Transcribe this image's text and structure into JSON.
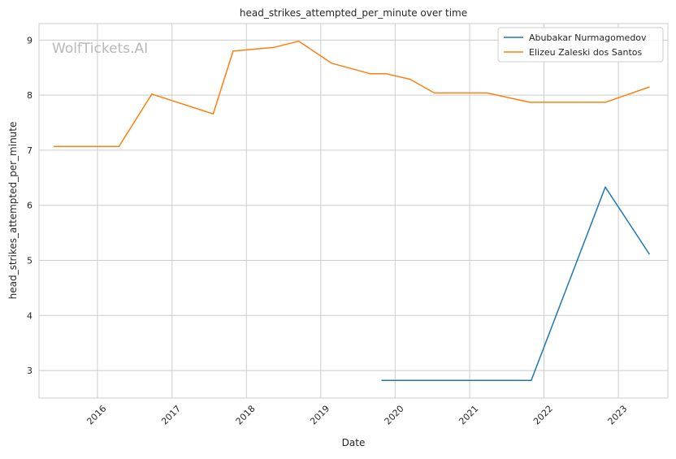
{
  "chart_data": {
    "type": "line",
    "title": "head_strikes_attempted_per_minute over time",
    "xlabel": "Date",
    "ylabel": "head_strikes_attempted_per_minute",
    "watermark": "WolfTickets.AI",
    "grid": true,
    "legend_position": "top-right",
    "x_ticks": [
      "2016",
      "2017",
      "2018",
      "2019",
      "2020",
      "2021",
      "2022",
      "2023"
    ],
    "y_ticks": [
      3,
      4,
      5,
      6,
      7,
      8,
      9
    ],
    "ylim": [
      2.5,
      9.3
    ],
    "xlim": [
      "2015-03-20",
      "2023-09-01"
    ],
    "series": [
      {
        "name": "Abubakar Nurmagomedov",
        "color": "#1f77b4",
        "points": [
          {
            "x": "2019-10-26",
            "y": 2.82
          },
          {
            "x": "2021-10-30",
            "y": 2.82
          },
          {
            "x": "2022-10-29",
            "y": 6.33
          },
          {
            "x": "2023-06-03",
            "y": 5.11
          }
        ]
      },
      {
        "name": "Elizeu Zaleski dos Santos",
        "color": "#ff7f0e",
        "points": [
          {
            "x": "2015-05-30",
            "y": 7.07
          },
          {
            "x": "2016-04-16",
            "y": 7.07
          },
          {
            "x": "2016-09-24",
            "y": 8.02
          },
          {
            "x": "2017-07-22",
            "y": 7.66
          },
          {
            "x": "2017-10-28",
            "y": 8.8
          },
          {
            "x": "2018-05-19",
            "y": 8.87
          },
          {
            "x": "2018-09-15",
            "y": 8.98
          },
          {
            "x": "2019-02-23",
            "y": 8.58
          },
          {
            "x": "2019-08-31",
            "y": 8.39
          },
          {
            "x": "2019-11-16",
            "y": 8.39
          },
          {
            "x": "2020-03-14",
            "y": 8.29
          },
          {
            "x": "2020-07-11",
            "y": 8.04
          },
          {
            "x": "2021-03-27",
            "y": 8.04
          },
          {
            "x": "2021-10-23",
            "y": 7.87
          },
          {
            "x": "2022-10-29",
            "y": 7.87
          },
          {
            "x": "2023-06-03",
            "y": 8.15
          }
        ]
      }
    ]
  }
}
